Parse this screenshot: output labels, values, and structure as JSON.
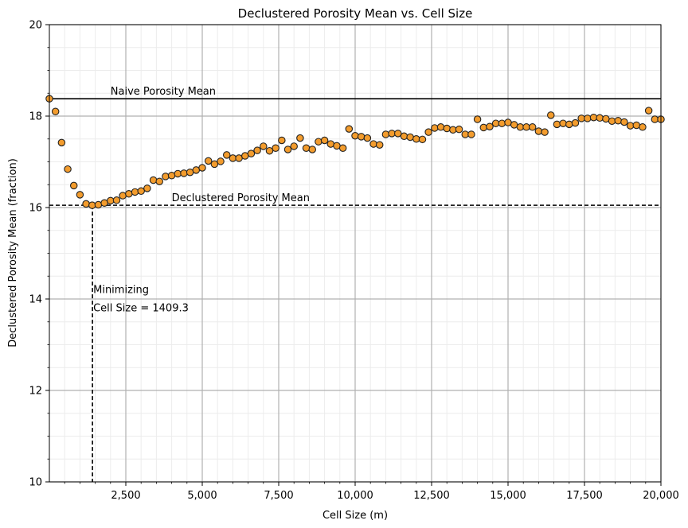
{
  "chart_data": {
    "type": "scatter",
    "title": "Declustered Porosity Mean vs. Cell Size",
    "xlabel": "Cell Size (m)",
    "ylabel": "Declustered Porosity Mean (fraction)",
    "xlim": [
      0,
      20000
    ],
    "ylim": [
      10,
      20
    ],
    "x_major_ticks": [
      2500,
      5000,
      7500,
      10000,
      12500,
      15000,
      17500,
      20000
    ],
    "x_tick_labels": [
      "2,500",
      "5,000",
      "7,500",
      "10,000",
      "12,500",
      "15,000",
      "17,500",
      "20,000"
    ],
    "y_major_ticks": [
      10,
      12,
      14,
      16,
      18,
      20
    ],
    "y_tick_labels": [
      "10",
      "12",
      "14",
      "16",
      "18",
      "20"
    ],
    "x_minor_step": 500,
    "y_minor_step": 0.5,
    "grid": true,
    "marker_fill": "#f39c2d",
    "marker_edge": "#222222",
    "points": {
      "x": [
        0,
        200,
        400,
        600,
        800,
        1000,
        1200,
        1400,
        1600,
        1800,
        2000,
        2200,
        2400,
        2600,
        2800,
        3000,
        3200,
        3400,
        3600,
        3800,
        4000,
        4200,
        4400,
        4600,
        4800,
        5000,
        5200,
        5400,
        5600,
        5800,
        6000,
        6200,
        6400,
        6600,
        6800,
        7000,
        7200,
        7400,
        7600,
        7800,
        8000,
        8200,
        8400,
        8600,
        8800,
        9000,
        9200,
        9400,
        9600,
        9800,
        10000,
        10200,
        10400,
        10600,
        10800,
        11000,
        11200,
        11400,
        11600,
        11800,
        12000,
        12200,
        12400,
        12600,
        12800,
        13000,
        13200,
        13400,
        13600,
        13800,
        14000,
        14200,
        14400,
        14600,
        14800,
        15000,
        15200,
        15400,
        15600,
        15800,
        16000,
        16200,
        16400,
        16600,
        16800,
        17000,
        17200,
        17400,
        17600,
        17800,
        18000,
        18200,
        18400,
        18600,
        18800,
        19000,
        19200,
        19400,
        19600,
        19800,
        20000
      ],
      "y": [
        18.38,
        18.1,
        17.42,
        16.84,
        16.48,
        16.28,
        16.08,
        16.05,
        16.06,
        16.1,
        16.15,
        16.16,
        16.26,
        16.3,
        16.34,
        16.36,
        16.42,
        16.6,
        16.57,
        16.68,
        16.7,
        16.74,
        16.75,
        16.77,
        16.82,
        16.87,
        17.02,
        16.95,
        17.01,
        17.15,
        17.08,
        17.08,
        17.13,
        17.18,
        17.25,
        17.34,
        17.24,
        17.3,
        17.47,
        17.27,
        17.34,
        17.52,
        17.3,
        17.27,
        17.44,
        17.47,
        17.39,
        17.35,
        17.3,
        17.72,
        17.57,
        17.55,
        17.52,
        17.39,
        17.37,
        17.6,
        17.62,
        17.62,
        17.56,
        17.54,
        17.5,
        17.49,
        17.65,
        17.74,
        17.76,
        17.73,
        17.7,
        17.71,
        17.6,
        17.6,
        17.93,
        17.75,
        17.77,
        17.84,
        17.84,
        17.86,
        17.81,
        17.76,
        17.76,
        17.76,
        17.67,
        17.65,
        18.02,
        17.82,
        17.84,
        17.82,
        17.85,
        17.95,
        17.95,
        17.97,
        17.96,
        17.94,
        17.89,
        17.9,
        17.87,
        17.79,
        17.8,
        17.76,
        18.12,
        17.93,
        17.93
      ]
    },
    "reference_lines": {
      "naive_mean": {
        "y": 18.38,
        "label": "Naive Porosity Mean"
      },
      "declustered_mean": {
        "y": 16.05,
        "label": "Declustered Porosity Mean"
      },
      "minimizing_cell": {
        "x": 1409.3,
        "label_line1": "Minimizing",
        "label_line2": "Cell Size = 1409.3"
      }
    }
  }
}
